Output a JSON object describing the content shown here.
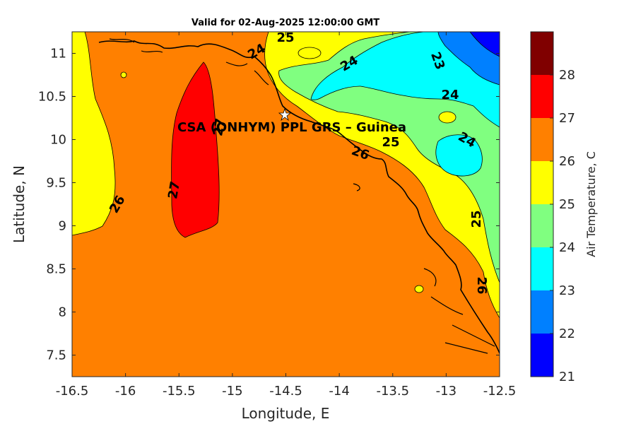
{
  "title": "Valid for 02-Aug-2025 12:00:00 GMT",
  "x_axis": {
    "label": "Longitude, E",
    "ticks": [
      "-16.5",
      "-16",
      "-15.5",
      "-15",
      "-14.5",
      "-14",
      "-13.5",
      "-13",
      "-12.5"
    ]
  },
  "y_axis": {
    "label": "Latitude, N",
    "ticks": [
      "7.5",
      "8",
      "8.5",
      "9",
      "9.5",
      "10",
      "10.5",
      "11"
    ]
  },
  "colorbar": {
    "label": "Air Temperature, C",
    "ticks": [
      "21",
      "22",
      "23",
      "24",
      "25",
      "26",
      "27",
      "28"
    ],
    "colors": [
      "#0000ff",
      "#0080ff",
      "#00ffff",
      "#80ff80",
      "#ffff00",
      "#ff8000",
      "#ff0000",
      "#800000"
    ]
  },
  "site": {
    "label": "CSA (ONHYM) PPL GRS  – Guinea",
    "lon": -14.5,
    "lat": 10.28
  },
  "contour_labels": [
    {
      "text": "25",
      "lon": -14.45,
      "lat": 11.2
    },
    {
      "text": "24",
      "lon": -14.1,
      "lat": 10.92
    },
    {
      "text": "23",
      "lon": -13.05,
      "lat": 10.92
    },
    {
      "text": "24",
      "lon": -12.95,
      "lat": 10.5
    },
    {
      "text": "24",
      "lon": -12.82,
      "lat": 9.98
    },
    {
      "text": "25",
      "lon": -13.5,
      "lat": 9.98
    },
    {
      "text": "26",
      "lon": -13.8,
      "lat": 9.9
    },
    {
      "text": "25",
      "lon": -12.68,
      "lat": 9.08
    },
    {
      "text": "26",
      "lon": -12.68,
      "lat": 8.3
    },
    {
      "text": "26",
      "lon": -16.05,
      "lat": 9.25
    },
    {
      "text": "27",
      "lon": -15.55,
      "lat": 9.4
    },
    {
      "text": "27",
      "lon": -15.08,
      "lat": 10.12
    },
    {
      "text": "24",
      "lon": -14.82,
      "lat": 11.0
    }
  ],
  "chart_data": {
    "type": "heatmap",
    "title": "Valid for 02-Aug-2025 12:00:00 GMT",
    "xlabel": "Longitude, E",
    "ylabel": "Latitude, N",
    "xlim": [
      -16.5,
      -12.5
    ],
    "ylim": [
      7.25,
      11.25
    ],
    "colorbar_label": "Air Temperature, C",
    "clim": [
      21,
      28
    ],
    "contour_levels": [
      21,
      22,
      23,
      24,
      25,
      26,
      27,
      28
    ],
    "regions": [
      {
        "range": "25-26",
        "location": "west strip along -16.5 to -16.1"
      },
      {
        "range": "26-27",
        "location": "most of domain"
      },
      {
        "range": "27-28",
        "location": "lon -15.6 to -15.1, lat 8.9 to 10.9"
      },
      {
        "range": "24-25",
        "location": "northeast, near coast"
      },
      {
        "range": "23-24",
        "location": "northeast offshore"
      },
      {
        "range": "22-23",
        "location": "northeast corner"
      },
      {
        "range": "21-22",
        "location": "far northeast corner"
      }
    ]
  }
}
